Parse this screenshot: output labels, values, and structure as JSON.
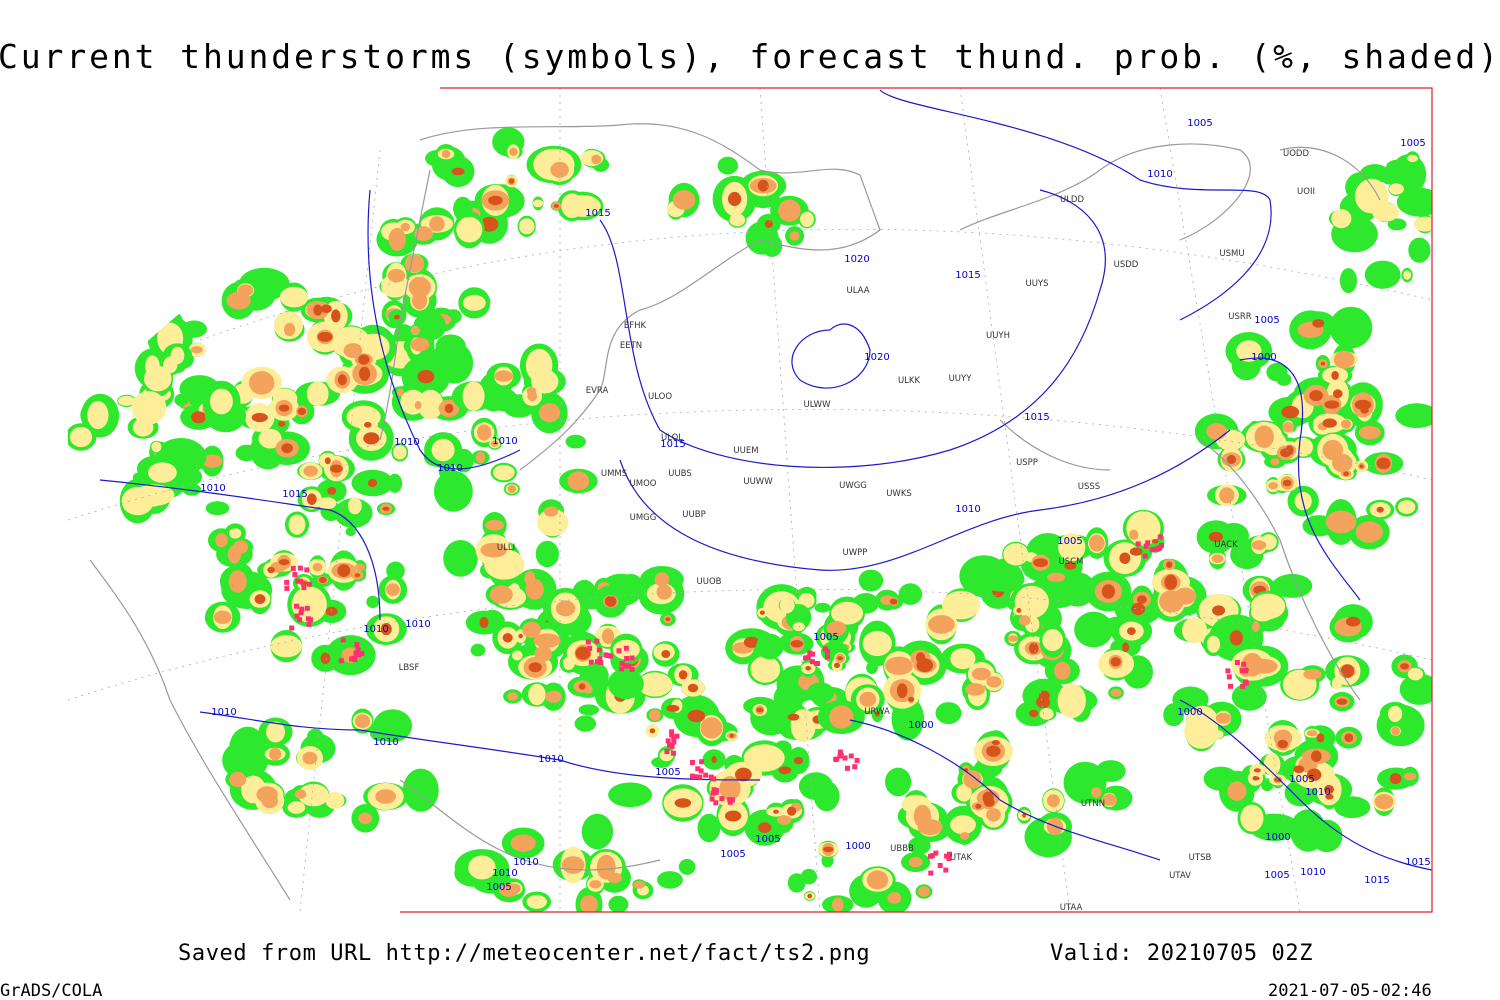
{
  "title": "Current thunderstorms (symbols), forecast thund. prob. (%, shaded)",
  "footer": {
    "source": "Saved from URL http://meteocenter.net/fact/ts2.png",
    "valid": "Valid: 20210705 02Z",
    "software": "GrADS/COLA",
    "timestamp": "2021-07-05-02:46"
  },
  "isobars": [
    "1005",
    "1005",
    "1010",
    "1015",
    "1020",
    "1015",
    "1020",
    "1015",
    "1010",
    "1010",
    "1010",
    "1015",
    "1010",
    "1015",
    "1010",
    "1005",
    "1000",
    "1005",
    "1010",
    "1010",
    "1005",
    "1010",
    "1000",
    "1000",
    "1010",
    "1010",
    "1005",
    "1005",
    "1010",
    "1005",
    "1005",
    "1000",
    "1000",
    "1010",
    "1010",
    "1005",
    "1005",
    "1010",
    "1015",
    "1015"
  ],
  "stations": [
    "ULDD",
    "UUYS",
    "USDD",
    "USMU",
    "UOII",
    "UODD",
    "ULAA",
    "UUYH",
    "ULKK",
    "UUYY",
    "ULWW",
    "EFHK",
    "EETN",
    "ULOO",
    "UUEM",
    "ULOL",
    "UMMS",
    "UMOO",
    "UUBS",
    "UUWW",
    "UWGG",
    "UWKS",
    "USPP",
    "USSS",
    "UMGG",
    "UUBP",
    "UWPP",
    "USCM",
    "UACK",
    "USRR",
    "ULLI",
    "EVRA",
    "UUOB",
    "URWA",
    "UTAK",
    "UBBB",
    "UTSB",
    "UTAV",
    "UTAA",
    "UTNN",
    "LBSF"
  ]
}
